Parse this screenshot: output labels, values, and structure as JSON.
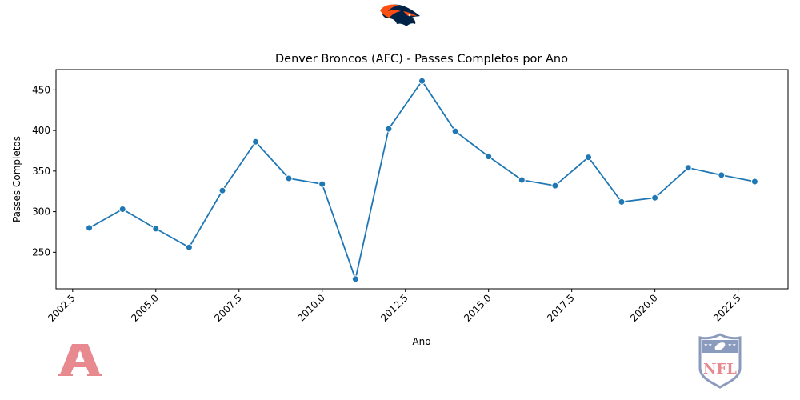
{
  "chart_data": {
    "type": "line",
    "title": "Denver Broncos (AFC) - Passes Completos por Ano",
    "xlabel": "Ano",
    "ylabel": "Passes Completos",
    "xlim": [
      2002.0,
      2024.0
    ],
    "ylim": [
      205,
      475
    ],
    "x_ticks": [
      2002.5,
      2005.0,
      2007.5,
      2010.0,
      2012.5,
      2015.0,
      2017.5,
      2020.0,
      2022.5
    ],
    "x_tick_labels": [
      "2002.5",
      "2005.0",
      "2007.5",
      "2010.0",
      "2012.5",
      "2015.0",
      "2017.5",
      "2020.0",
      "2022.5"
    ],
    "y_ticks": [
      250,
      300,
      350,
      400,
      450
    ],
    "y_tick_labels": [
      "250",
      "300",
      "350",
      "400",
      "450"
    ],
    "grid": false,
    "series": [
      {
        "color": "#1f77b4",
        "marker": "circle",
        "x": [
          2003,
          2004,
          2005,
          2006,
          2007,
          2008,
          2009,
          2010,
          2011,
          2012,
          2013,
          2014,
          2015,
          2016,
          2017,
          2018,
          2019,
          2020,
          2021,
          2022,
          2023
        ],
        "y": [
          280,
          303,
          279,
          256,
          326,
          386,
          341,
          334,
          217,
          402,
          461,
          399,
          368,
          339,
          332,
          367,
          312,
          317,
          354,
          345,
          337
        ]
      }
    ]
  },
  "logos": {
    "team_logo": "broncos-horse-head-logo",
    "conference_logo": "afc-logo",
    "league_logo": "nfl-shield-logo",
    "colors": {
      "broncos_orange": "#fb4f14",
      "broncos_navy": "#002244",
      "afc_red": "#e8888f",
      "nfl_blue": "#8a9bbd",
      "nfl_red": "#e8888f"
    }
  }
}
